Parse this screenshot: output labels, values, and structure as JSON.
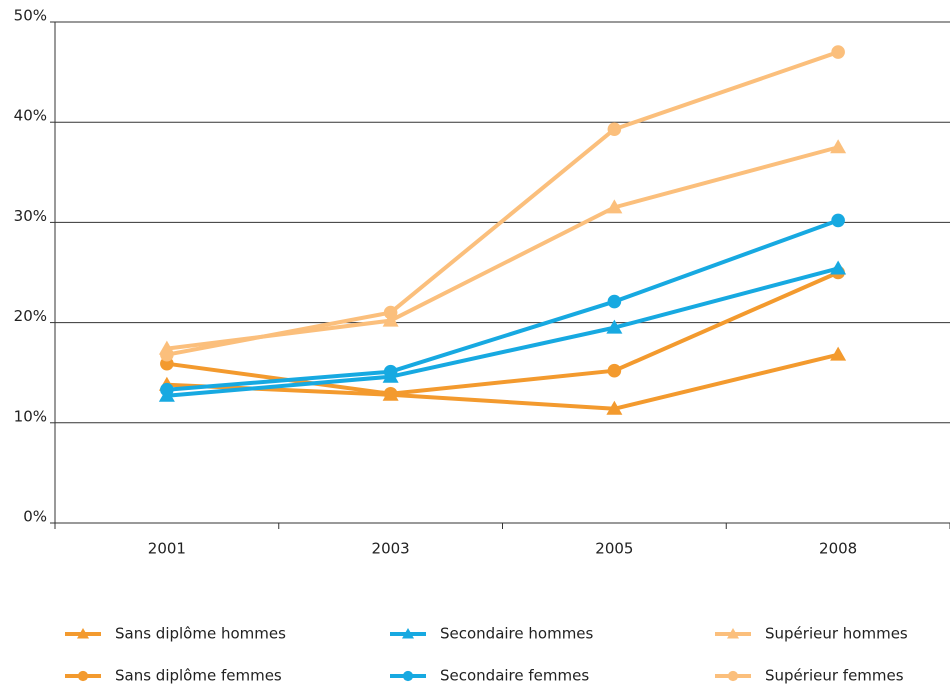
{
  "chart_data": {
    "type": "line",
    "categories": [
      "2001",
      "2003",
      "2005",
      "2008"
    ],
    "series": [
      {
        "name": "Sans diplôme hommes",
        "color": "#f39a2e",
        "marker": "triangle",
        "values": [
          13.8,
          12.8,
          11.4,
          16.8
        ]
      },
      {
        "name": "Sans diplôme femmes",
        "color": "#f39a2e",
        "marker": "circle",
        "values": [
          15.9,
          12.9,
          15.2,
          25.0
        ]
      },
      {
        "name": "Secondaire hommes",
        "color": "#17a9e1",
        "marker": "triangle",
        "values": [
          12.7,
          14.6,
          19.5,
          25.4
        ]
      },
      {
        "name": "Secondaire femmes",
        "color": "#17a9e1",
        "marker": "circle",
        "values": [
          13.3,
          15.1,
          22.1,
          30.2
        ]
      },
      {
        "name": "Supérieur hommes",
        "color": "#fbbf7c",
        "marker": "triangle",
        "values": [
          17.4,
          20.2,
          31.5,
          37.5
        ]
      },
      {
        "name": "Supérieur femmes",
        "color": "#fbbf7c",
        "marker": "circle",
        "values": [
          16.8,
          21.0,
          39.3,
          47.0
        ]
      }
    ],
    "ylim": [
      0,
      50
    ],
    "yticks": [
      {
        "value": 0,
        "label": "0%"
      },
      {
        "value": 10,
        "label": "10%"
      },
      {
        "value": 20,
        "label": "20%"
      },
      {
        "value": 30,
        "label": "30%"
      },
      {
        "value": 40,
        "label": "40%"
      },
      {
        "value": 50,
        "label": "50%"
      }
    ],
    "grid": true
  }
}
